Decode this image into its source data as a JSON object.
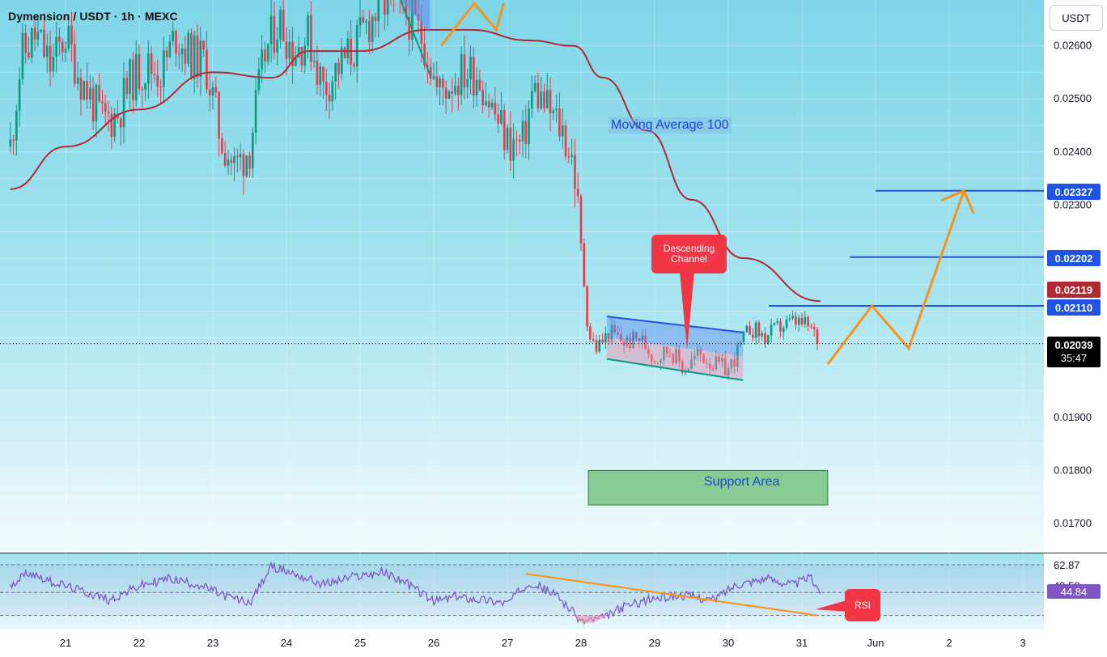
{
  "header": {
    "symbol_title": "Dymension / USDT · 1h · MEXC",
    "currency": "USDT"
  },
  "annotations": {
    "moving_average": "Moving Average 100",
    "descending_channel": "Descending\nChannel",
    "support_area": "Support Area",
    "rsi_callout": "RSI"
  },
  "price_labels": {
    "target_1": "0.02327",
    "target_2": "0.02202",
    "ma_value": "0.02119",
    "target_3": "0.02110",
    "current_price": "0.02039",
    "countdown": "35:47",
    "rsi_value": "44.84"
  },
  "colors": {
    "up_candle": "#089981",
    "down_candle": "#F23645",
    "ma_line": "#B22833",
    "projection": "#F7931A",
    "target_lines": "#1E53E5",
    "rsi_line": "#7E57C2",
    "support_zone": "#4CAF50"
  },
  "chart_data": [
    {
      "type": "candlestick",
      "title": "Dymension / USDT · 1h · MEXC",
      "x_ticks": [
        "21",
        "22",
        "23",
        "24",
        "25",
        "26",
        "27",
        "28",
        "29",
        "30",
        "31",
        "Jun",
        "2",
        "3"
      ],
      "y_ticks": [
        "0.02600",
        "0.02500",
        "0.02400",
        "0.02300",
        "0.01900",
        "0.01800",
        "0.01700"
      ],
      "ylim": [
        0.0165,
        0.0268
      ],
      "grid": true,
      "price_path": [
        {
          "x": 20.25,
          "y": 0.0241
        },
        {
          "x": 20.4,
          "y": 0.0258
        },
        {
          "x": 20.6,
          "y": 0.0262
        },
        {
          "x": 20.8,
          "y": 0.0256
        },
        {
          "x": 21.0,
          "y": 0.0262
        },
        {
          "x": 21.2,
          "y": 0.0254
        },
        {
          "x": 21.5,
          "y": 0.0246
        },
        {
          "x": 21.7,
          "y": 0.0247
        },
        {
          "x": 21.9,
          "y": 0.0254
        },
        {
          "x": 22.1,
          "y": 0.0256
        },
        {
          "x": 22.3,
          "y": 0.0255
        },
        {
          "x": 22.5,
          "y": 0.0262
        },
        {
          "x": 22.7,
          "y": 0.0258
        },
        {
          "x": 22.9,
          "y": 0.0257
        },
        {
          "x": 23.1,
          "y": 0.0243
        },
        {
          "x": 23.3,
          "y": 0.0237
        },
        {
          "x": 23.5,
          "y": 0.0241
        },
        {
          "x": 23.7,
          "y": 0.0258
        },
        {
          "x": 23.9,
          "y": 0.0265
        },
        {
          "x": 24.1,
          "y": 0.0259
        },
        {
          "x": 24.3,
          "y": 0.0262
        },
        {
          "x": 24.5,
          "y": 0.0252
        },
        {
          "x": 24.7,
          "y": 0.0256
        },
        {
          "x": 24.9,
          "y": 0.0259
        },
        {
          "x": 25.1,
          "y": 0.0264
        },
        {
          "x": 25.3,
          "y": 0.0268
        },
        {
          "x": 25.5,
          "y": 0.0267
        },
        {
          "x": 25.7,
          "y": 0.0265
        },
        {
          "x": 25.9,
          "y": 0.026
        },
        {
          "x": 26.05,
          "y": 0.0251
        },
        {
          "x": 26.2,
          "y": 0.0253
        },
        {
          "x": 26.4,
          "y": 0.0255
        },
        {
          "x": 26.6,
          "y": 0.0255
        },
        {
          "x": 26.8,
          "y": 0.0248
        },
        {
          "x": 27.0,
          "y": 0.0242
        },
        {
          "x": 27.2,
          "y": 0.0241
        },
        {
          "x": 27.35,
          "y": 0.0252
        },
        {
          "x": 27.55,
          "y": 0.0248
        },
        {
          "x": 27.75,
          "y": 0.0244
        },
        {
          "x": 27.9,
          "y": 0.0238
        },
        {
          "x": 28.0,
          "y": 0.0222
        },
        {
          "x": 28.1,
          "y": 0.0206
        },
        {
          "x": 28.2,
          "y": 0.0203
        },
        {
          "x": 28.4,
          "y": 0.0206
        },
        {
          "x": 28.6,
          "y": 0.0204
        },
        {
          "x": 28.8,
          "y": 0.0205
        },
        {
          "x": 29.0,
          "y": 0.0201
        },
        {
          "x": 29.2,
          "y": 0.0203
        },
        {
          "x": 29.4,
          "y": 0.0199
        },
        {
          "x": 29.6,
          "y": 0.0202
        },
        {
          "x": 29.8,
          "y": 0.02
        },
        {
          "x": 30.0,
          "y": 0.0199
        },
        {
          "x": 30.15,
          "y": 0.0203
        },
        {
          "x": 30.3,
          "y": 0.0207
        },
        {
          "x": 30.5,
          "y": 0.0205
        },
        {
          "x": 30.7,
          "y": 0.0207
        },
        {
          "x": 30.9,
          "y": 0.0208
        },
        {
          "x": 31.1,
          "y": 0.0207
        },
        {
          "x": 31.25,
          "y": 0.0204
        }
      ],
      "series": [
        {
          "name": "Moving Average 100",
          "points": [
            {
              "x": 20.25,
              "y": 0.0233
            },
            {
              "x": 21.0,
              "y": 0.0241
            },
            {
              "x": 22.0,
              "y": 0.0248
            },
            {
              "x": 23.0,
              "y": 0.0255
            },
            {
              "x": 23.8,
              "y": 0.0254
            },
            {
              "x": 24.3,
              "y": 0.0259
            },
            {
              "x": 25.0,
              "y": 0.0259
            },
            {
              "x": 25.9,
              "y": 0.0263
            },
            {
              "x": 26.5,
              "y": 0.0263
            },
            {
              "x": 27.3,
              "y": 0.0261
            },
            {
              "x": 27.9,
              "y": 0.026
            },
            {
              "x": 28.3,
              "y": 0.0254
            },
            {
              "x": 28.9,
              "y": 0.0244
            },
            {
              "x": 29.5,
              "y": 0.0231
            },
            {
              "x": 30.2,
              "y": 0.022
            },
            {
              "x": 31.25,
              "y": 0.02119
            }
          ]
        }
      ],
      "descending_channel": {
        "x_start": 28.35,
        "x_end": 30.2,
        "upper_start": 0.0209,
        "upper_end": 0.0206,
        "lower_start": 0.0201,
        "lower_end": 0.0197
      },
      "support_area": {
        "x_start": 28.1,
        "x_end": 31.35,
        "y_low": 0.01735,
        "y_high": 0.018
      },
      "projection_path": [
        {
          "x": 31.35,
          "y": 0.02
        },
        {
          "x": 31.95,
          "y": 0.0211
        },
        {
          "x": 32.45,
          "y": 0.0203
        },
        {
          "x": 33.2,
          "y": 0.02327
        }
      ],
      "target_levels": [
        {
          "value": 0.02327,
          "x_start": 32.0
        },
        {
          "value": 0.02202,
          "x_start": 31.65
        },
        {
          "value": 0.0211,
          "x_start": 30.55
        }
      ],
      "current_price": 0.02039
    },
    {
      "type": "line",
      "title": "RSI",
      "y_ticks": [
        "62.87",
        "49.58"
      ],
      "ylim": [
        20,
        75
      ],
      "levels": [
        62.87,
        44.84,
        30
      ],
      "series": [
        {
          "name": "RSI",
          "points": [
            {
              "x": 20.25,
              "y": 50
            },
            {
              "x": 20.5,
              "y": 58
            },
            {
              "x": 20.8,
              "y": 52
            },
            {
              "x": 21.2,
              "y": 46
            },
            {
              "x": 21.6,
              "y": 40
            },
            {
              "x": 22.0,
              "y": 49
            },
            {
              "x": 22.4,
              "y": 54
            },
            {
              "x": 22.8,
              "y": 50
            },
            {
              "x": 23.2,
              "y": 42
            },
            {
              "x": 23.5,
              "y": 38
            },
            {
              "x": 23.8,
              "y": 62
            },
            {
              "x": 24.1,
              "y": 57
            },
            {
              "x": 24.5,
              "y": 50
            },
            {
              "x": 24.9,
              "y": 55
            },
            {
              "x": 25.3,
              "y": 58
            },
            {
              "x": 25.6,
              "y": 52
            },
            {
              "x": 26.0,
              "y": 39
            },
            {
              "x": 26.3,
              "y": 42
            },
            {
              "x": 26.7,
              "y": 40
            },
            {
              "x": 27.0,
              "y": 38
            },
            {
              "x": 27.3,
              "y": 52
            },
            {
              "x": 27.7,
              "y": 42
            },
            {
              "x": 28.0,
              "y": 26
            },
            {
              "x": 28.3,
              "y": 28
            },
            {
              "x": 28.6,
              "y": 36
            },
            {
              "x": 29.0,
              "y": 41
            },
            {
              "x": 29.4,
              "y": 43
            },
            {
              "x": 29.8,
              "y": 40
            },
            {
              "x": 30.1,
              "y": 50
            },
            {
              "x": 30.5,
              "y": 54
            },
            {
              "x": 30.9,
              "y": 50
            },
            {
              "x": 31.1,
              "y": 55
            },
            {
              "x": 31.25,
              "y": 46
            }
          ]
        }
      ],
      "trendline": [
        {
          "x": 27.25,
          "y": 57
        },
        {
          "x": 31.2,
          "y": 30
        }
      ],
      "current_value": 44.84
    }
  ]
}
